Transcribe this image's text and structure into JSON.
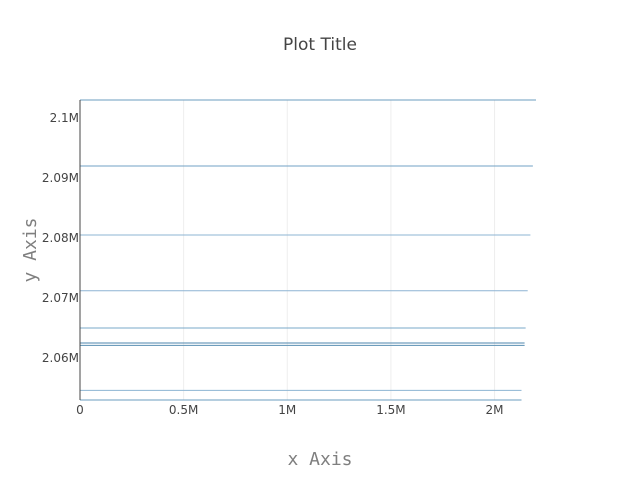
{
  "chart_data": {
    "type": "line",
    "title": "Plot Title",
    "xlabel": "x Axis",
    "ylabel": "y Axis",
    "x_ticks": [
      {
        "value": 0,
        "label": "0"
      },
      {
        "value": 500000,
        "label": "0.5M"
      },
      {
        "value": 1000000,
        "label": "1M"
      },
      {
        "value": 1500000,
        "label": "1.5M"
      },
      {
        "value": 2000000,
        "label": "2M"
      }
    ],
    "y_ticks": [
      {
        "value": 2060000,
        "label": "2.06M"
      },
      {
        "value": 2070000,
        "label": "2.07M"
      },
      {
        "value": 2080000,
        "label": "2.08M"
      },
      {
        "value": 2090000,
        "label": "2.09M"
      },
      {
        "value": 2100000,
        "label": "2.1M"
      }
    ],
    "xlim": [
      0,
      2200000
    ],
    "ylim": [
      2053000,
      2103000
    ],
    "grid": true,
    "legend": false,
    "series": [
      {
        "x": [
          0,
          2200000
        ],
        "y": [
          2103000,
          2103000
        ],
        "color": "#6b9cbf"
      },
      {
        "x": [
          0,
          2185000
        ],
        "y": [
          2092000,
          2092000
        ],
        "color": "#72a2c4"
      },
      {
        "x": [
          0,
          2173000
        ],
        "y": [
          2080500,
          2080500
        ],
        "color": "#8db4d3"
      },
      {
        "x": [
          0,
          2160000
        ],
        "y": [
          2071200,
          2071200
        ],
        "color": "#8db4d3"
      },
      {
        "x": [
          0,
          2150000
        ],
        "y": [
          2065000,
          2065000
        ],
        "color": "#7aa8c8"
      },
      {
        "x": [
          0,
          2145000
        ],
        "y": [
          2062500,
          2062500
        ],
        "color": "#4e86ad"
      },
      {
        "x": [
          0,
          2145000
        ],
        "y": [
          2062100,
          2062100
        ],
        "color": "#5a8fb3"
      },
      {
        "x": [
          0,
          2130000
        ],
        "y": [
          2054600,
          2054600
        ],
        "color": "#8db4d3"
      },
      {
        "x": [
          0,
          2130000
        ],
        "y": [
          2053000,
          2053000
        ],
        "color": "#6b9cbf"
      }
    ]
  }
}
